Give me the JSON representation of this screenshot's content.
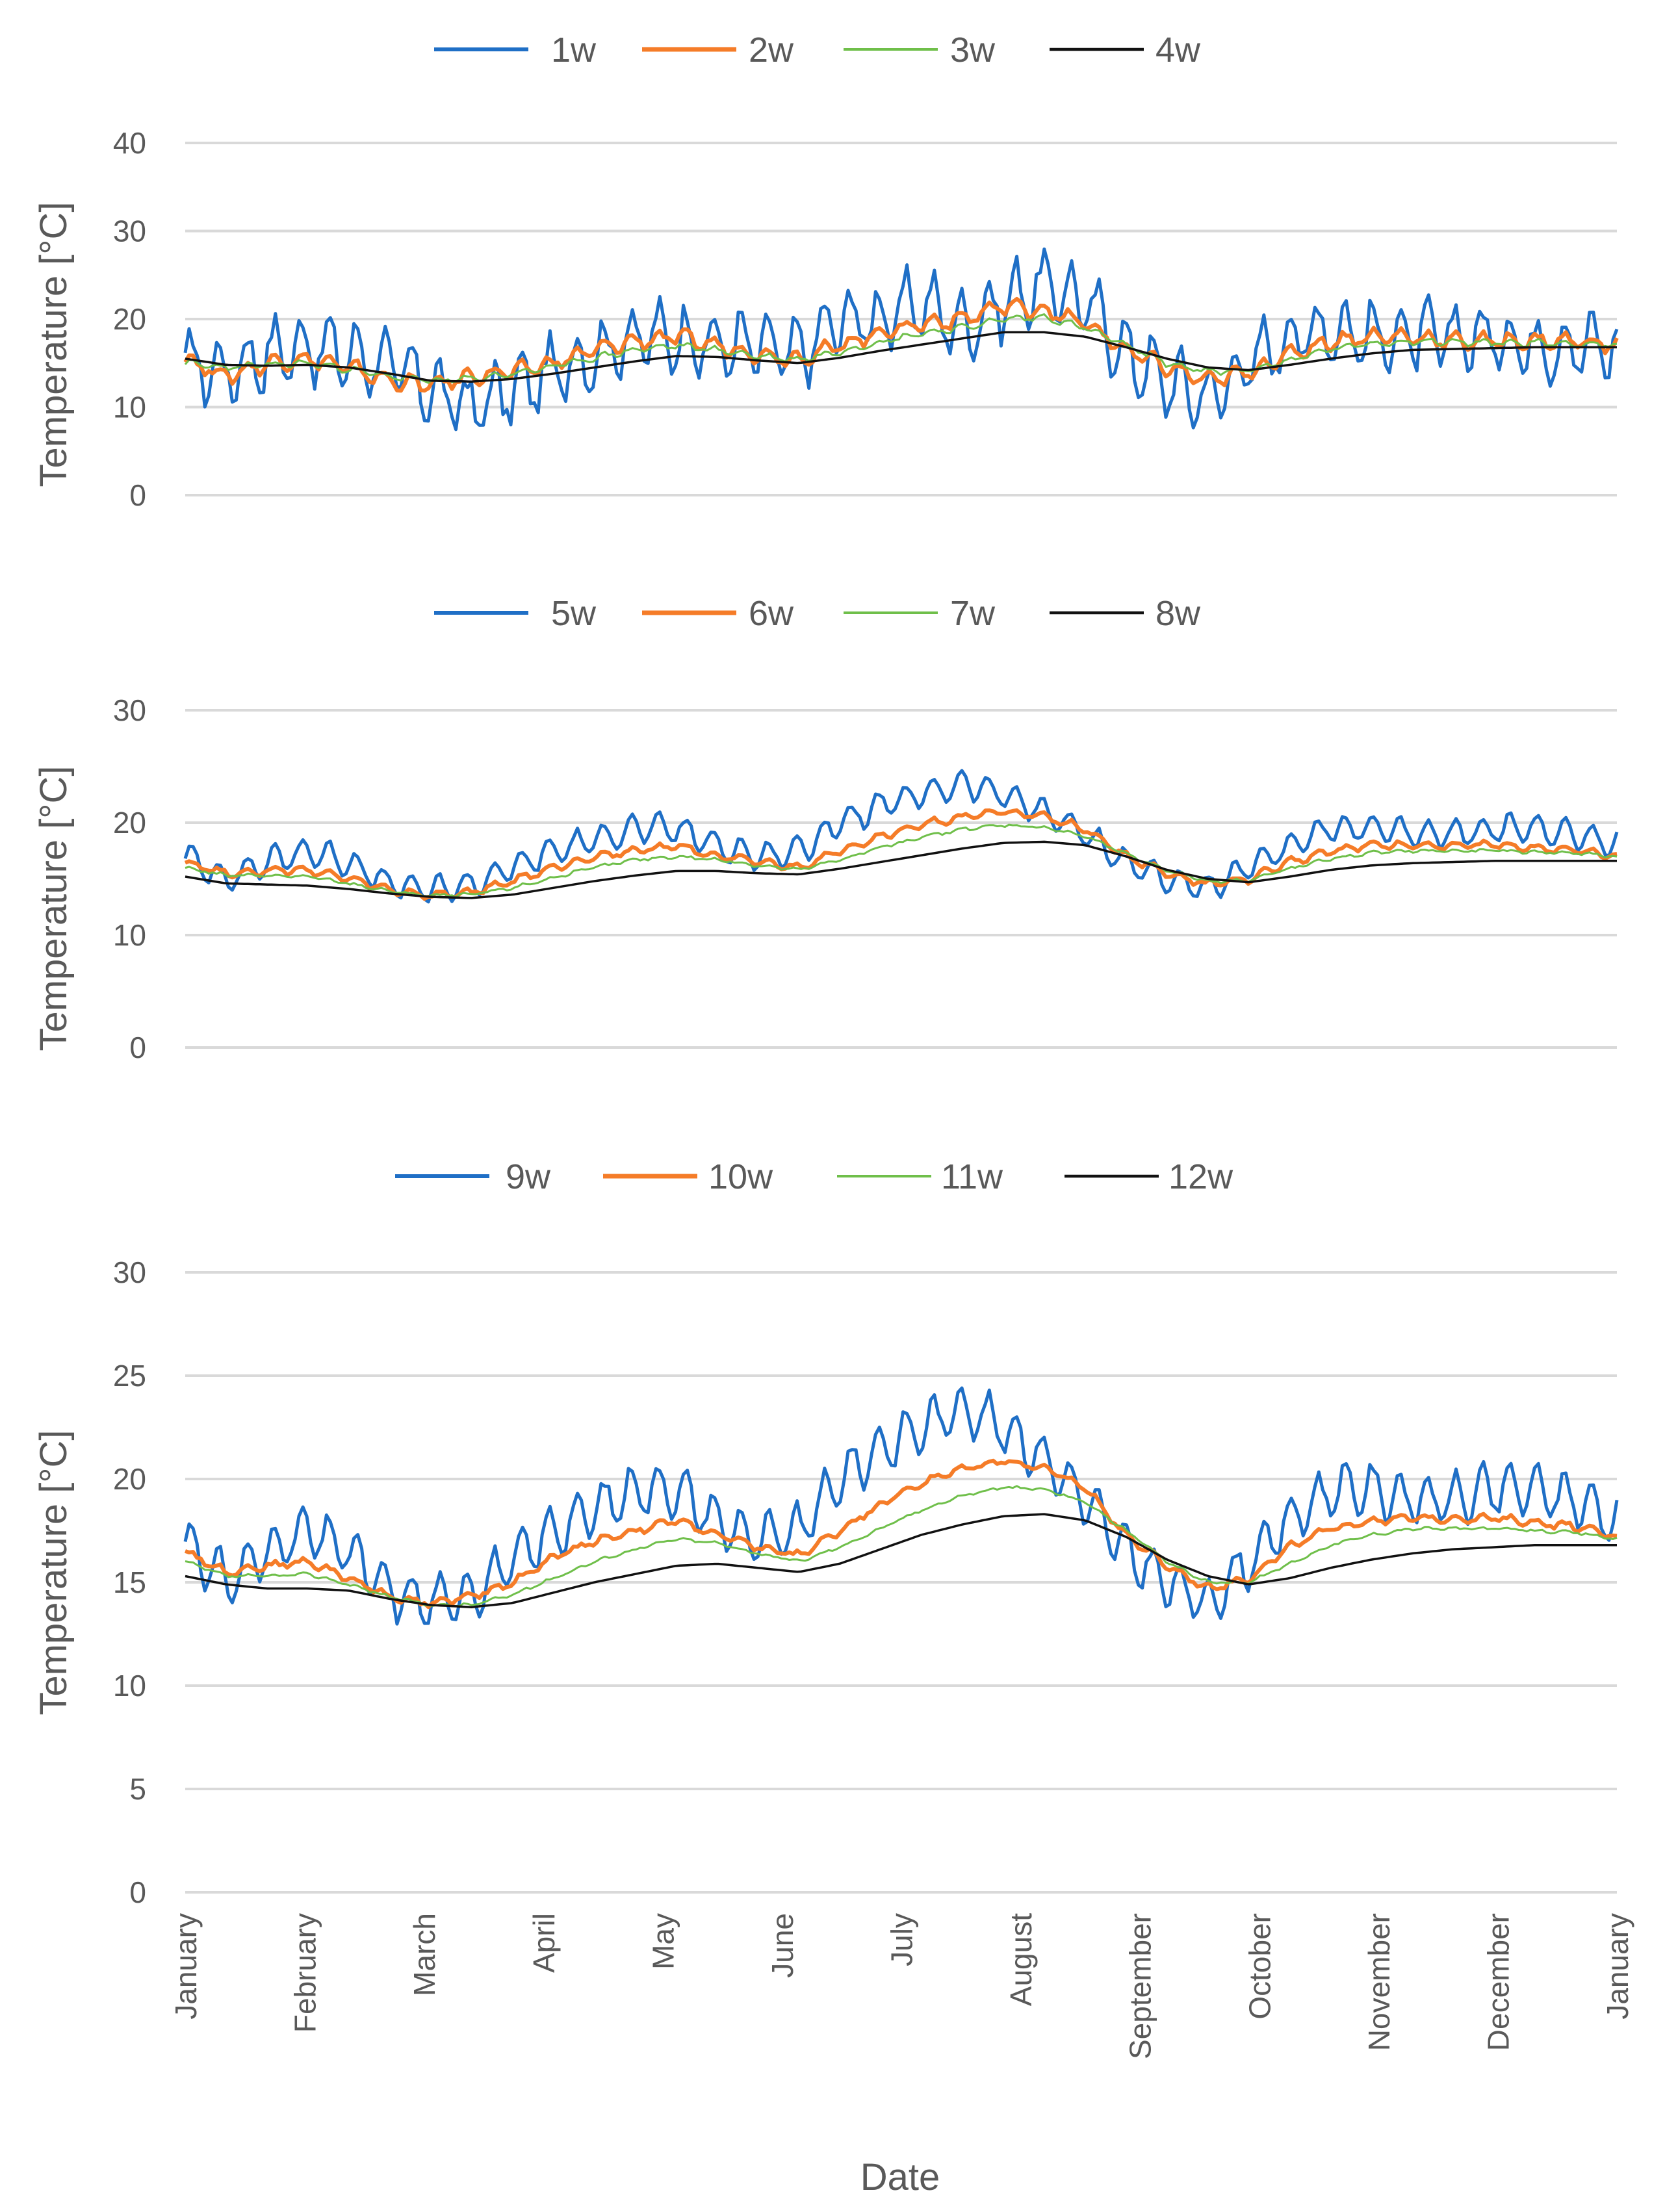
{
  "figure": {
    "xlabel": "Date"
  },
  "months": [
    "January",
    "February",
    "March",
    "April",
    "May",
    "June",
    "July",
    "August",
    "September",
    "October",
    "November",
    "December",
    "January"
  ],
  "colors": {
    "blue": "#1f6fc6",
    "orange": "#f57c28",
    "green": "#6fbf4a",
    "black": "#111111"
  },
  "chart_data": [
    {
      "type": "line",
      "title": "",
      "xlabel": "",
      "ylabel": "Temperature [°C]",
      "ylim": [
        0,
        40
      ],
      "yticks": [
        0,
        10,
        20,
        30,
        40
      ],
      "x_axis_labels_shown": false,
      "series": [
        {
          "name": "1w",
          "color": "#1f6fc6",
          "weekly_amplitude": 3.5,
          "noise": 1.5,
          "values": [
            15,
            14,
            16,
            17,
            16,
            15,
            12,
            10,
            12,
            14,
            16,
            18,
            18,
            17,
            17,
            16,
            20,
            20,
            22,
            19,
            22,
            24,
            22,
            16,
            13,
            11,
            15,
            18,
            19,
            18,
            18,
            18,
            18,
            17,
            17,
            17
          ]
        },
        {
          "name": "2w",
          "color": "#f57c28",
          "weekly_amplitude": 0.8,
          "noise": 0.4,
          "values": [
            15.5,
            13.5,
            15,
            15.5,
            14.5,
            13,
            12.5,
            13.5,
            14,
            15,
            16.5,
            17.5,
            18,
            17,
            16,
            15.5,
            17,
            18.5,
            19.5,
            20,
            21.5,
            21,
            19.5,
            16.5,
            14.5,
            13,
            14,
            16,
            17.5,
            18,
            18,
            17.5,
            17.5,
            17.5,
            17.5,
            17
          ]
        },
        {
          "name": "3w",
          "color": "#6fbf4a",
          "weekly_amplitude": 0.3,
          "noise": 0.2,
          "values": [
            15,
            14.5,
            14.8,
            15,
            14.3,
            13.5,
            13,
            13.2,
            13.8,
            14.6,
            15.6,
            16.5,
            17,
            16.5,
            15.8,
            15.4,
            16.3,
            17.4,
            18.4,
            19,
            20,
            20.2,
            19,
            17,
            15,
            14,
            14.2,
            15.3,
            16.6,
            17.2,
            17.5,
            17.4,
            17.3,
            17.3,
            17.2,
            17
          ]
        },
        {
          "name": "4w",
          "color": "#111111",
          "weekly_amplitude": 0,
          "noise": 0,
          "values": [
            15.5,
            14.8,
            14.7,
            14.8,
            14.5,
            13.8,
            13,
            12.9,
            13.2,
            13.8,
            14.5,
            15.2,
            15.8,
            15.7,
            15.3,
            15,
            15.6,
            16.4,
            17.1,
            17.8,
            18.5,
            18.5,
            18,
            16.8,
            15.5,
            14.5,
            14.2,
            14.8,
            15.5,
            16.1,
            16.5,
            16.6,
            16.7,
            16.8,
            16.8,
            16.8
          ]
        }
      ]
    },
    {
      "type": "line",
      "title": "",
      "xlabel": "",
      "ylabel": "Temperature [°C]",
      "ylim": [
        0,
        30
      ],
      "yticks": [
        0,
        10,
        20,
        30
      ],
      "x_axis_labels_shown": false,
      "series": [
        {
          "name": "5w",
          "color": "#1f6fc6",
          "weekly_amplitude": 1.2,
          "noise": 0.3,
          "values": [
            17,
            15,
            16.5,
            17.5,
            16.5,
            14.5,
            14,
            14.5,
            16,
            17.5,
            18.5,
            19.5,
            19.5,
            18,
            17,
            17.5,
            20,
            21.5,
            22.5,
            23.5,
            22.5,
            21,
            19,
            16.5,
            15,
            14,
            16,
            18,
            19.5,
            19.5,
            19,
            19,
            19.5,
            19.5,
            19,
            18
          ]
        },
        {
          "name": "6w",
          "color": "#f57c28",
          "weekly_amplitude": 0.3,
          "noise": 0.15,
          "values": [
            16.5,
            15.5,
            15.7,
            15.8,
            15,
            14,
            13.5,
            13.8,
            14.8,
            16,
            17,
            17.5,
            18,
            17,
            16.5,
            16,
            17.5,
            18.8,
            19.8,
            20.5,
            21,
            20.5,
            19.5,
            17,
            15.5,
            14.5,
            15,
            16.5,
            17.5,
            18,
            18,
            18,
            18,
            17.8,
            17.5,
            17
          ]
        },
        {
          "name": "7w",
          "color": "#6fbf4a",
          "weekly_amplitude": 0.1,
          "noise": 0.1,
          "values": [
            16,
            15.3,
            15.3,
            15.2,
            14.6,
            13.9,
            13.5,
            13.6,
            14.2,
            15.1,
            16,
            16.7,
            17,
            16.7,
            16.2,
            15.8,
            16.7,
            17.8,
            18.7,
            19.4,
            19.8,
            19.6,
            18.8,
            17.2,
            15.8,
            14.8,
            14.9,
            15.9,
            16.8,
            17.3,
            17.5,
            17.5,
            17.5,
            17.4,
            17.3,
            17
          ]
        },
        {
          "name": "8w",
          "color": "#111111",
          "weekly_amplitude": 0,
          "noise": 0,
          "values": [
            15.2,
            14.6,
            14.5,
            14.4,
            14.1,
            13.7,
            13.4,
            13.3,
            13.6,
            14.2,
            14.8,
            15.3,
            15.7,
            15.7,
            15.5,
            15.4,
            15.9,
            16.5,
            17.1,
            17.7,
            18.2,
            18.3,
            18,
            17,
            15.8,
            15,
            14.7,
            15.2,
            15.8,
            16.2,
            16.4,
            16.5,
            16.6,
            16.6,
            16.6,
            16.6
          ]
        }
      ]
    },
    {
      "type": "line",
      "title": "",
      "xlabel": "Date",
      "ylabel": "Temperature [°C]",
      "ylim": [
        0,
        30
      ],
      "yticks": [
        0,
        5,
        10,
        15,
        20,
        25,
        30
      ],
      "x_axis_labels_shown": true,
      "series": [
        {
          "name": "9w",
          "color": "#1f6fc6",
          "weekly_amplitude": 1.2,
          "noise": 0.3,
          "values": [
            17,
            15,
            16.5,
            17.5,
            16.5,
            14.5,
            14,
            14.5,
            16,
            17.5,
            18.5,
            19.5,
            19.5,
            18,
            17,
            17.5,
            20,
            21.5,
            22.5,
            23.5,
            22.5,
            21,
            19,
            16.5,
            15,
            14,
            16,
            18,
            19.5,
            19.5,
            19,
            19,
            19.5,
            19.5,
            19,
            18
          ]
        },
        {
          "name": "10w",
          "color": "#f57c28",
          "weekly_amplitude": 0.15,
          "noise": 0.1,
          "values": [
            16.5,
            15.5,
            15.8,
            16,
            15.2,
            14.3,
            14,
            14.3,
            15,
            16.2,
            17,
            17.5,
            18,
            17.3,
            16.7,
            16.3,
            17.5,
            18.8,
            19.8,
            20.5,
            20.9,
            20.5,
            19.6,
            17.3,
            15.8,
            14.7,
            15.2,
            16.7,
            17.6,
            18,
            18.1,
            18.1,
            18.1,
            17.9,
            17.7,
            17.2
          ]
        },
        {
          "name": "11w",
          "color": "#6fbf4a",
          "weekly_amplitude": 0.05,
          "noise": 0.05,
          "values": [
            16,
            15.3,
            15.3,
            15.4,
            14.9,
            14.3,
            13.9,
            13.9,
            14.4,
            15.2,
            16,
            16.6,
            17.1,
            16.9,
            16.4,
            16,
            16.7,
            17.6,
            18.5,
            19.2,
            19.6,
            19.5,
            18.9,
            17.5,
            16,
            15,
            15,
            15.9,
            16.8,
            17.3,
            17.6,
            17.6,
            17.6,
            17.5,
            17.4,
            17.1
          ]
        },
        {
          "name": "12w",
          "color": "#111111",
          "weekly_amplitude": 0,
          "noise": 0,
          "values": [
            15.3,
            14.9,
            14.7,
            14.7,
            14.6,
            14.2,
            13.9,
            13.8,
            14,
            14.5,
            15,
            15.4,
            15.8,
            15.9,
            15.7,
            15.5,
            15.9,
            16.6,
            17.3,
            17.8,
            18.2,
            18.3,
            18,
            17.2,
            16.1,
            15.3,
            14.9,
            15.2,
            15.7,
            16.1,
            16.4,
            16.6,
            16.7,
            16.8,
            16.8,
            16.8
          ]
        }
      ]
    }
  ]
}
